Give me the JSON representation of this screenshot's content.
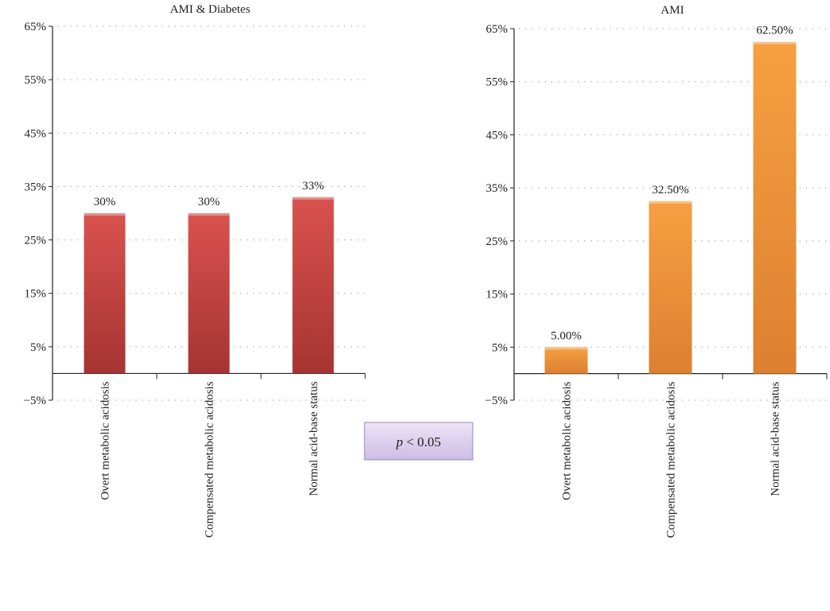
{
  "chart_data": [
    {
      "type": "bar",
      "title": "AMI & Diabetes",
      "categories": [
        "Overt metabolic acidosis",
        "Compensated metabolic acidosis",
        "Normal acid-base status"
      ],
      "values": [
        30,
        30,
        33
      ],
      "data_labels": [
        "30%",
        "30%",
        "33%"
      ],
      "ylim": [
        -5,
        65
      ],
      "yticks": [
        65,
        55,
        45,
        35,
        25,
        15,
        5,
        -5
      ],
      "ytick_labels": [
        "65%",
        "55%",
        "45%",
        "35%",
        "25%",
        "15%",
        "5%",
        "−5%"
      ],
      "xlabel": "",
      "ylabel": "",
      "grid": "dotted horizontal",
      "color": "#c8403f"
    },
    {
      "type": "bar",
      "title": "AMI",
      "categories": [
        "Overt metabolic acidosis",
        "Compensated metabolic acidosis",
        "Normal acid-base status"
      ],
      "values": [
        5.0,
        32.5,
        62.5
      ],
      "data_labels": [
        "5.00%",
        "32.50%",
        "62.50%"
      ],
      "ylim": [
        -5,
        65
      ],
      "yticks": [
        65,
        55,
        45,
        35,
        25,
        15,
        5,
        -5
      ],
      "ytick_labels": [
        "65%",
        "55%",
        "45%",
        "35%",
        "25%",
        "15%",
        "5%",
        "−5%"
      ],
      "xlabel": "",
      "ylabel": "",
      "grid": "dotted horizontal",
      "color": "#f0963a"
    }
  ],
  "annotation": {
    "p_symbol": "p",
    "p_text": " < 0.05"
  }
}
